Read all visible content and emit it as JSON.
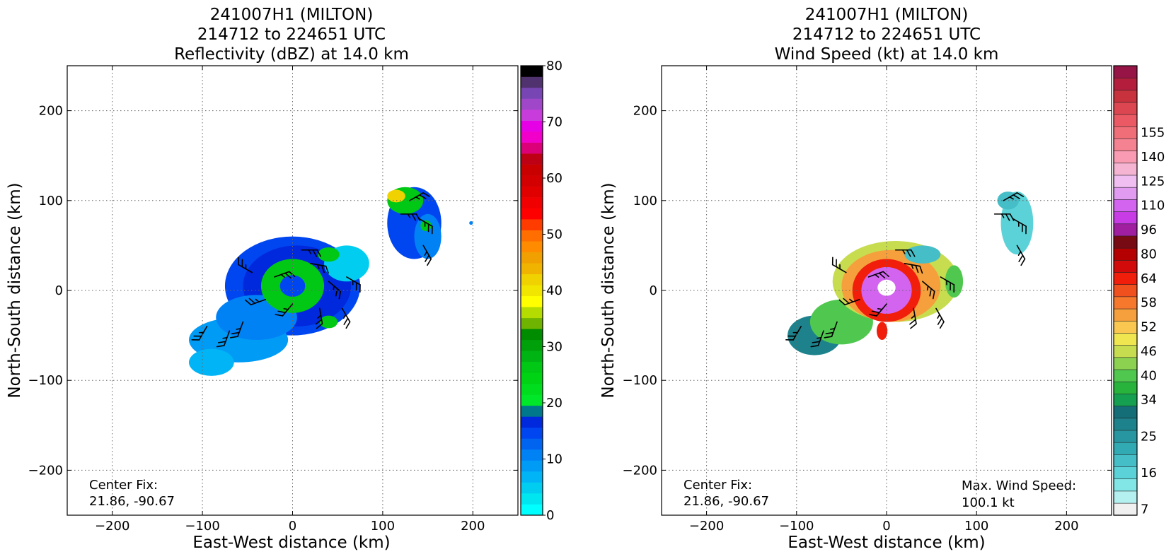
{
  "chart_data": [
    {
      "type": "heatmap",
      "title_lines": [
        "241007H1 (MILTON)",
        "214712 to 224651 UTC",
        "Reflectivity (dBZ) at 14.0 km"
      ],
      "xlabel": "East-West distance (km)",
      "ylabel": "North-South distance (km)",
      "xlim": [
        -250,
        250
      ],
      "ylim": [
        -250,
        250
      ],
      "xticks": [
        -200,
        -100,
        0,
        100,
        200
      ],
      "yticks": [
        200,
        100,
        0,
        -100,
        -200
      ],
      "grid": true,
      "annotation_lines": [
        "Center Fix:",
        "21.86, -90.67"
      ],
      "colorbar": {
        "min": 0,
        "max": 80,
        "tick_values": [
          0,
          10,
          20,
          30,
          40,
          50,
          60,
          70,
          80
        ],
        "colors": [
          "#00ffff",
          "#00e6f0",
          "#00cdf0",
          "#00b4f5",
          "#009bf5",
          "#0082f5",
          "#0064f0",
          "#0046f0",
          "#0028dc",
          "#00788c",
          "#00e628",
          "#00dc1e",
          "#00d214",
          "#00c814",
          "#00b414",
          "#00a00a",
          "#008c00",
          "#6eb400",
          "#b4dc00",
          "#ffff00",
          "#f0e600",
          "#f0d200",
          "#f0b400",
          "#f0a000",
          "#ff8c00",
          "#ff6e00",
          "#ff3c00",
          "#ff0000",
          "#f00000",
          "#e10000",
          "#d20000",
          "#c80000",
          "#be0014",
          "#dc0078",
          "#f000c8",
          "#e600e6",
          "#c83cdc",
          "#a046c8",
          "#7846b4",
          "#50326e",
          "#000000"
        ]
      },
      "echo_cells": [
        {
          "x": 0,
          "y": 5,
          "rx": 75,
          "ry": 55,
          "color": "#0046f0"
        },
        {
          "x": 5,
          "y": 5,
          "rx": 60,
          "ry": 45,
          "color": "#0028dc"
        },
        {
          "x": -60,
          "y": -55,
          "rx": 55,
          "ry": 25,
          "color": "#009bf5"
        },
        {
          "x": -90,
          "y": -80,
          "rx": 25,
          "ry": 15,
          "color": "#00b4f5"
        },
        {
          "x": -40,
          "y": -30,
          "rx": 45,
          "ry": 25,
          "color": "#0082f5"
        },
        {
          "x": 60,
          "y": 30,
          "rx": 25,
          "ry": 20,
          "color": "#00cdf0"
        },
        {
          "x": 0,
          "y": 5,
          "rx": 35,
          "ry": 30,
          "color": "#00c814"
        },
        {
          "x": 0,
          "y": 5,
          "rx": 14,
          "ry": 12,
          "color": "#0046f0"
        },
        {
          "x": 40,
          "y": 40,
          "rx": 12,
          "ry": 8,
          "color": "#00c814"
        },
        {
          "x": 40,
          "y": -35,
          "rx": 10,
          "ry": 7,
          "color": "#00c814"
        },
        {
          "x": 135,
          "y": 75,
          "rx": 30,
          "ry": 40,
          "color": "#0046f0"
        },
        {
          "x": 150,
          "y": 60,
          "rx": 15,
          "ry": 25,
          "color": "#0082f5"
        },
        {
          "x": 125,
          "y": 100,
          "rx": 20,
          "ry": 15,
          "color": "#00c814"
        },
        {
          "x": 115,
          "y": 105,
          "rx": 10,
          "ry": 7,
          "color": "#f0d200"
        },
        {
          "x": 148,
          "y": 72,
          "rx": 6,
          "ry": 6,
          "color": "#00c814"
        },
        {
          "x": 198,
          "y": 75,
          "rx": 2,
          "ry": 2,
          "color": "#0082f5"
        }
      ],
      "barbs": [
        {
          "x": -20,
          "y": 15,
          "dir": 70
        },
        {
          "x": 20,
          "y": 30,
          "dir": 100
        },
        {
          "x": 40,
          "y": 10,
          "dir": 130
        },
        {
          "x": 30,
          "y": -20,
          "dir": 170
        },
        {
          "x": 0,
          "y": -15,
          "dir": 220
        },
        {
          "x": -30,
          "y": -10,
          "dir": 250
        },
        {
          "x": -45,
          "y": 20,
          "dir": 300
        },
        {
          "x": 55,
          "y": -20,
          "dir": 150
        },
        {
          "x": 60,
          "y": 15,
          "dir": 120
        },
        {
          "x": -70,
          "y": -45,
          "dir": 200
        },
        {
          "x": -95,
          "y": -40,
          "dir": 210
        },
        {
          "x": -55,
          "y": -35,
          "dir": 200
        },
        {
          "x": 130,
          "y": 100,
          "dir": 60
        },
        {
          "x": 140,
          "y": 80,
          "dir": 120
        },
        {
          "x": 145,
          "y": 50,
          "dir": 150
        },
        {
          "x": 120,
          "y": 85,
          "dir": 90
        },
        {
          "x": 10,
          "y": 45,
          "dir": 90
        }
      ]
    },
    {
      "type": "heatmap",
      "title_lines": [
        "241007H1 (MILTON)",
        "214712 to 224651 UTC",
        "Wind Speed (kt) at 14.0 km"
      ],
      "xlabel": "East-West distance (km)",
      "ylabel": "North-South distance (km)",
      "xlim": [
        -250,
        250
      ],
      "ylim": [
        -250,
        250
      ],
      "xticks": [
        -200,
        -100,
        0,
        100,
        200
      ],
      "yticks": [
        200,
        100,
        0,
        -100,
        -200
      ],
      "grid": true,
      "annotation_lines": [
        "Center Fix:",
        "21.86, -90.67"
      ],
      "annotation2_lines": [
        "Max. Wind Speed:",
        "100.1 kt"
      ],
      "colorbar": {
        "tick_labels": [
          "7",
          "16",
          "25",
          "34",
          "40",
          "46",
          "52",
          "58",
          "64",
          "80",
          "96",
          "110",
          "125",
          "140",
          "155"
        ],
        "tick_indices": [
          0,
          3,
          6,
          9,
          11,
          13,
          15,
          17,
          19,
          21,
          23,
          25,
          27,
          29,
          31
        ],
        "colors": [
          "#f0f0f0",
          "#b4f0f0",
          "#82e6e6",
          "#5ad2d7",
          "#46bec8",
          "#32aab4",
          "#2896a0",
          "#1e828c",
          "#146e78",
          "#14a050",
          "#28b43c",
          "#50c850",
          "#8cd250",
          "#c8dc50",
          "#f0e650",
          "#fac850",
          "#f5a03c",
          "#f5782d",
          "#f0501e",
          "#f01e0a",
          "#d20a0a",
          "#b40000",
          "#780a14",
          "#a01ea0",
          "#c83ce6",
          "#d264f0",
          "#e19bf0",
          "#f0bef0",
          "#f5b4d2",
          "#fa9bb4",
          "#f58291",
          "#f06e78",
          "#eb5a64",
          "#dc4650",
          "#c8323c",
          "#b41e3c",
          "#961446"
        ]
      },
      "echo_cells": [
        {
          "x": -80,
          "y": -50,
          "rx": 30,
          "ry": 22,
          "color": "#1e828c"
        },
        {
          "x": -50,
          "y": -35,
          "rx": 35,
          "ry": 25,
          "color": "#50c850"
        },
        {
          "x": 10,
          "y": 10,
          "rx": 70,
          "ry": 45,
          "color": "#c8dc50"
        },
        {
          "x": 5,
          "y": 5,
          "rx": 55,
          "ry": 40,
          "color": "#f5a03c"
        },
        {
          "x": 0,
          "y": 0,
          "rx": 38,
          "ry": 35,
          "color": "#f01e0a"
        },
        {
          "x": 0,
          "y": 0,
          "rx": 28,
          "ry": 26,
          "color": "#d264f0"
        },
        {
          "x": 0,
          "y": 3,
          "rx": 10,
          "ry": 9,
          "color": "#ffffff"
        },
        {
          "x": 40,
          "y": 40,
          "rx": 20,
          "ry": 10,
          "color": "#46bec8"
        },
        {
          "x": 75,
          "y": 10,
          "rx": 10,
          "ry": 18,
          "color": "#50c850"
        },
        {
          "x": -5,
          "y": -45,
          "rx": 6,
          "ry": 10,
          "color": "#f01e0a"
        },
        {
          "x": 145,
          "y": 75,
          "rx": 18,
          "ry": 35,
          "color": "#5ad2d7"
        },
        {
          "x": 135,
          "y": 100,
          "rx": 12,
          "ry": 10,
          "color": "#46bec8"
        }
      ],
      "barbs": [
        {
          "x": -20,
          "y": 15,
          "dir": 70
        },
        {
          "x": 20,
          "y": 30,
          "dir": 100
        },
        {
          "x": 40,
          "y": 10,
          "dir": 130
        },
        {
          "x": 30,
          "y": -20,
          "dir": 170
        },
        {
          "x": 0,
          "y": -15,
          "dir": 220
        },
        {
          "x": -30,
          "y": -10,
          "dir": 250
        },
        {
          "x": -45,
          "y": 20,
          "dir": 300
        },
        {
          "x": 55,
          "y": -20,
          "dir": 150
        },
        {
          "x": 60,
          "y": 15,
          "dir": 120
        },
        {
          "x": -70,
          "y": -45,
          "dir": 200
        },
        {
          "x": -95,
          "y": -40,
          "dir": 210
        },
        {
          "x": -55,
          "y": -35,
          "dir": 200
        },
        {
          "x": 130,
          "y": 100,
          "dir": 60
        },
        {
          "x": 140,
          "y": 80,
          "dir": 120
        },
        {
          "x": 145,
          "y": 50,
          "dir": 150
        },
        {
          "x": 120,
          "y": 85,
          "dir": 90
        },
        {
          "x": 10,
          "y": 45,
          "dir": 90
        }
      ]
    }
  ]
}
